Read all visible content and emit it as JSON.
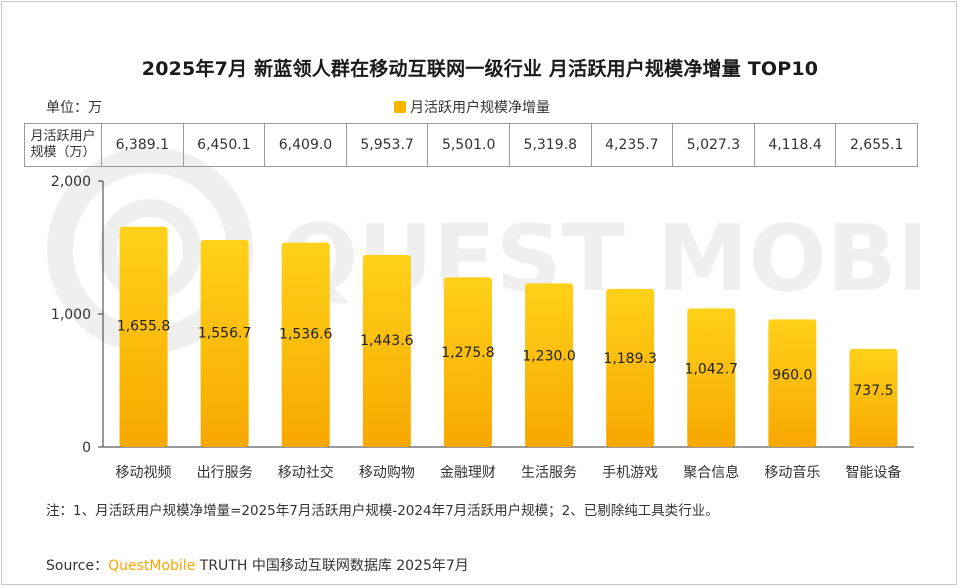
{
  "title": "2025年7月 新蓝领人群在移动互联网一级行业 月活跃用户规模净增量 TOP10",
  "unit_label": "单位：万",
  "legend_label": "月活跃用户规模净增量",
  "table": {
    "row_header": [
      "月活跃用户",
      "规模（万）"
    ],
    "values": [
      "6,389.1",
      "6,450.1",
      "6,409.0",
      "5,953.7",
      "5,501.0",
      "5,319.8",
      "4,235.7",
      "5,027.3",
      "4,118.4",
      "2,655.1"
    ]
  },
  "colors": {
    "bar_top": "#ffd11a",
    "bar_bottom": "#f7a800",
    "brand": "#f7a500"
  },
  "footnote": "注：1、月活跃用户规模净增量=2025年7月活跃用户规模-2024年7月活跃用户规模；2、已剔除纯工具类行业。",
  "source": {
    "prefix": "Source：",
    "brand": "QuestMobile",
    "suffix": " TRUTH 中国移动互联网数据库 2025年7月"
  },
  "watermark": "QUEST MOBILE",
  "chart_data": {
    "type": "bar",
    "categories": [
      "移动视频",
      "出行服务",
      "移动社交",
      "移动购物",
      "金融理财",
      "生活服务",
      "手机游戏",
      "聚合信息",
      "移动音乐",
      "智能设备"
    ],
    "values": [
      1655.8,
      1556.7,
      1536.6,
      1443.6,
      1275.8,
      1230.0,
      1189.3,
      1042.7,
      960.0,
      737.5
    ],
    "value_labels": [
      "1,655.8",
      "1,556.7",
      "1,536.6",
      "1,443.6",
      "1,275.8",
      "1,230.0",
      "1,189.3",
      "1,042.7",
      "960.0",
      "737.5"
    ],
    "y_ticks": [
      0,
      1000,
      2000
    ],
    "y_tick_labels": [
      "0",
      "1,000",
      "2,000"
    ],
    "ylim": [
      0,
      2000
    ],
    "series_name": "月活跃用户规模净增量",
    "grid": false,
    "legend": "top-center"
  }
}
